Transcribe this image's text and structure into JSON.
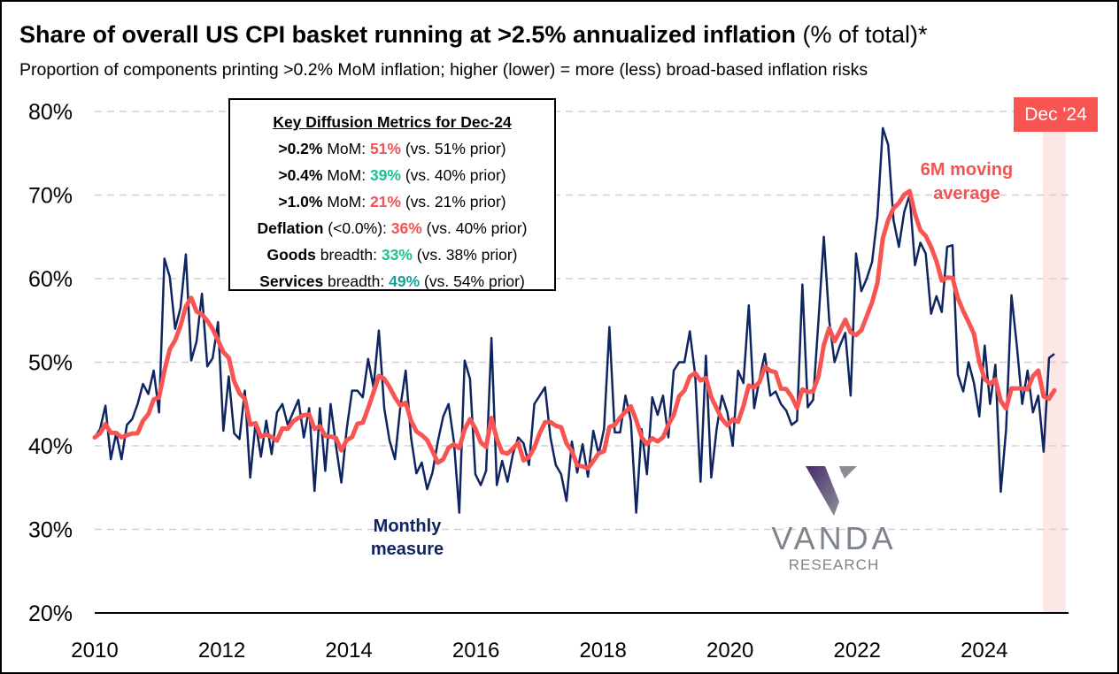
{
  "title_bold": "Share of overall US CPI basket running at >2.5% annualized inflation",
  "title_rest": " (% of total)*",
  "subtitle": "Proportion of components printing >0.2% MoM inflation; higher (lower) = more (less) broad-based inflation risks",
  "metrics_box": {
    "header": "Key Diffusion Metrics for Dec-24",
    "rows": [
      {
        "bold": ">0.2%",
        "label": " MoM: ",
        "value": "51%",
        "color": "red",
        "prior": " (vs. 51% prior)"
      },
      {
        "bold": ">0.4%",
        "label": " MoM: ",
        "value": "39%",
        "color": "green",
        "prior": " (vs. 40% prior)"
      },
      {
        "bold": ">1.0%",
        "label": " MoM: ",
        "value": "21%",
        "color": "red",
        "prior": " (vs. 21% prior)"
      },
      {
        "bold": "Deflation",
        "label": " (<0.0%): ",
        "value": "36%",
        "color": "red",
        "prior": " (vs. 40% prior)"
      },
      {
        "bold": "Goods",
        "label": " breadth: ",
        "value": "33%",
        "color": "green",
        "prior": " (vs. 38% prior)"
      },
      {
        "bold": "Services",
        "label": " breadth: ",
        "value": "49%",
        "color": "teal",
        "prior": " (vs. 54% prior)"
      }
    ]
  },
  "highlight_badge": "Dec '24",
  "annotations": {
    "moving_average": "6M moving average",
    "monthly": "Monthly measure"
  },
  "logo": {
    "name": "VANDA",
    "sub": "RESEARCH"
  },
  "colors": {
    "monthly": "#0e2561",
    "moving_average": "#f85452",
    "highlight": "#fde6e6",
    "grid": "#d0d0d0"
  },
  "chart_data": {
    "type": "line",
    "title": "Share of overall US CPI basket running at >2.5% annualized inflation (% of total)*",
    "xlabel": "",
    "ylabel": "",
    "ylim": [
      20,
      80
    ],
    "yticks": [
      20,
      30,
      40,
      50,
      60,
      70,
      80
    ],
    "ytick_labels": [
      "20%",
      "30%",
      "40%",
      "50%",
      "60%",
      "70%",
      "80%"
    ],
    "xticks": [
      2010,
      2012,
      2014,
      2016,
      2018,
      2020,
      2022,
      2024
    ],
    "start": "2010-01",
    "frequency": "monthly",
    "grid": "horizontal dashed",
    "ma_window": 6,
    "series": [
      {
        "name": "Monthly measure",
        "values": [
          41,
          42,
          44.8,
          38.4,
          41.5,
          38.4,
          42.5,
          43.2,
          45,
          47.4,
          46.2,
          49,
          44,
          62.4,
          60.2,
          54,
          56.5,
          62.9,
          50.2,
          52.5,
          58.2,
          49.5,
          50.5,
          54.8,
          41.8,
          48.3,
          41.5,
          40.8,
          46.6,
          36.2,
          42.8,
          38.7,
          43,
          39,
          44,
          45,
          42.5,
          44,
          45.5,
          41,
          44.5,
          34.6,
          44.5,
          37,
          45,
          40,
          35.6,
          42,
          46.6,
          46.6,
          45.8,
          50.4,
          47,
          53.8,
          44.5,
          40.6,
          38.4,
          44.6,
          49,
          41,
          36.7,
          38,
          34.8,
          36.8,
          40.5,
          43.5,
          45,
          40.5,
          32,
          50.2,
          48,
          36.6,
          35.3,
          37,
          52.9,
          35.3,
          38.2,
          35.7,
          39,
          41,
          40.3,
          37.7,
          45,
          46,
          47,
          41,
          37.7,
          36.6,
          33.4,
          40.5,
          36.8,
          40.2,
          36.3,
          41.8,
          39,
          42,
          54.2,
          41.6,
          41.6,
          46,
          43,
          32,
          42,
          36.6,
          45.8,
          43.7,
          46,
          41,
          49,
          50,
          50,
          53.7,
          48.5,
          35.7,
          50.8,
          36.2,
          42,
          46,
          44,
          40,
          49,
          47.5,
          56.8,
          44.5,
          48,
          51,
          46,
          46.5,
          45,
          44.2,
          42.5,
          43,
          59.3,
          44.6,
          45.5,
          55,
          65,
          55,
          50,
          52,
          53.5,
          46,
          63,
          58.5,
          60,
          62,
          67.5,
          78,
          76,
          67,
          63.8,
          68,
          70,
          61.6,
          64.3,
          63,
          55.8,
          57.9,
          56,
          63.8,
          64,
          48.5,
          46.5,
          50,
          47.5,
          43.5,
          52,
          45,
          49.7,
          34.5,
          42,
          58,
          52,
          45,
          49,
          44,
          46,
          39.3,
          50.5,
          51
        ]
      },
      {
        "name": "6M moving average",
        "derived_from": "Monthly measure"
      }
    ]
  }
}
